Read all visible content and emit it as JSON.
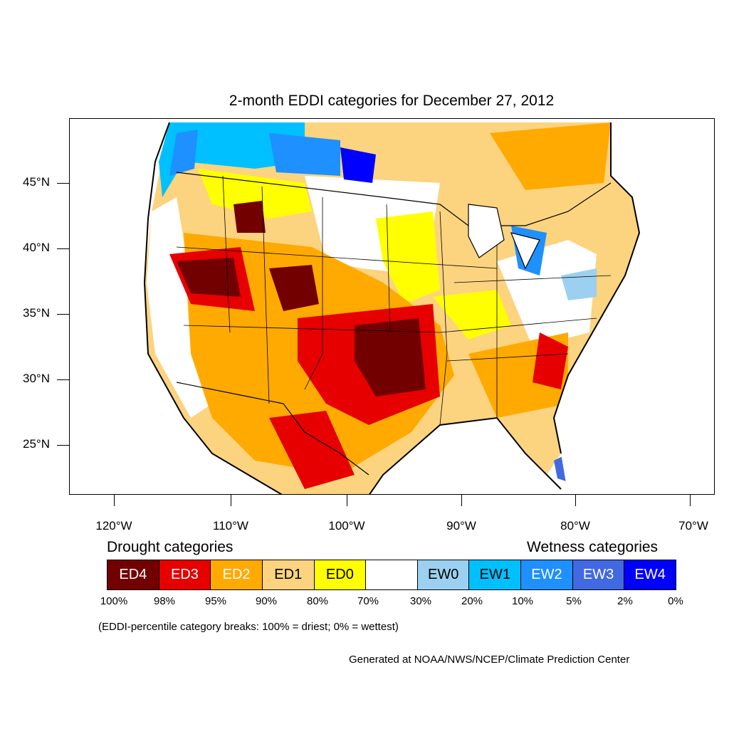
{
  "title": "2-month EDDI categories for December 27, 2012",
  "map": {
    "lat_labels": [
      "45°N",
      "40°N",
      "35°N",
      "30°N",
      "25°N"
    ],
    "lon_labels": [
      "120°W",
      "110°W",
      "100°W",
      "90°W",
      "80°W",
      "70°W"
    ]
  },
  "legend": {
    "drought_heading": "Drought categories",
    "wetness_heading": "Wetness categories",
    "categories": [
      {
        "label": "ED4",
        "color": "#730000"
      },
      {
        "label": "ED3",
        "color": "#e60000"
      },
      {
        "label": "ED2",
        "color": "#ffaa00"
      },
      {
        "label": "ED1",
        "color": "#fcd37f"
      },
      {
        "label": "ED0",
        "color": "#ffff00"
      },
      {
        "label": "",
        "color": "#ffffff"
      },
      {
        "label": "EW0",
        "color": "#9bd0f0"
      },
      {
        "label": "EW1",
        "color": "#00c0ff"
      },
      {
        "label": "EW2",
        "color": "#1e90ff"
      },
      {
        "label": "EW3",
        "color": "#4169e1"
      },
      {
        "label": "EW4",
        "color": "#0000ff"
      }
    ],
    "breaks": [
      "100%",
      "98%",
      "95%",
      "90%",
      "80%",
      "70%",
      "30%",
      "20%",
      "10%",
      "5%",
      "2%",
      "0%"
    ]
  },
  "note": "(EDDI-percentile category breaks: 100% = driest; 0% = wettest)",
  "credit": "Generated at NOAA/NWS/NCEP/Climate Prediction Center"
}
